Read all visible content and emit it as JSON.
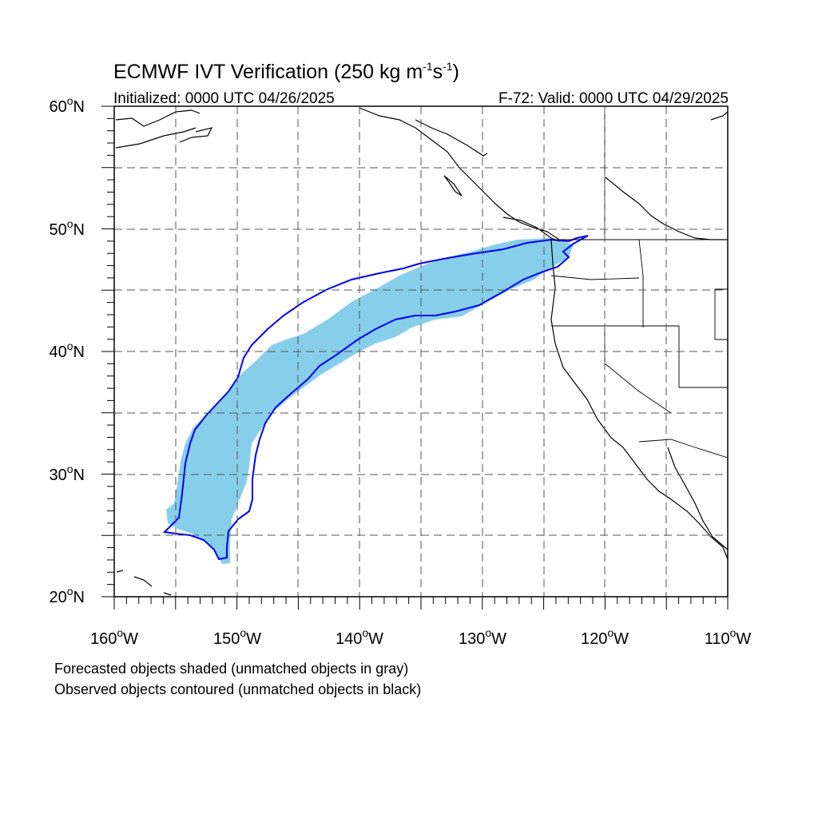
{
  "header": {
    "title_main": "ECMWF IVT Verification (250 kg m",
    "title_sup1": "-1",
    "title_mid": "s",
    "title_sup2": "-1",
    "title_end": ")",
    "initialized": "Initialized: 0000 UTC 04/26/2025",
    "valid": "F-72: Valid: 0000 UTC 04/29/2025"
  },
  "map": {
    "lon_range": [
      -160,
      -110
    ],
    "lat_range": [
      20,
      60
    ],
    "projection": "cylindrical-equidistant",
    "grid": "dashed",
    "lat_labels": [
      "60",
      "50",
      "40",
      "30",
      "20"
    ],
    "lon_labels": [
      "160",
      "150",
      "140",
      "130",
      "120",
      "110"
    ],
    "lat_suffix": "N",
    "lon_suffix": "W",
    "degree_symbol": "o",
    "colors": {
      "forecast_fill": "#87ceeb",
      "observed_contour": "#0000ee",
      "coastline": "#000000",
      "grid": "#555555"
    }
  },
  "legend": {
    "line1": "Forecasted objects shaded (unmatched objects in gray)",
    "line2": "Observed objects contoured (unmatched objects in black)"
  }
}
